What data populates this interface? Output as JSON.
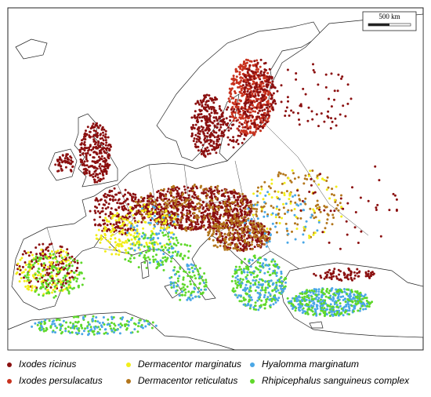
{
  "scale_bar": {
    "label": "500 km"
  },
  "legend": [
    {
      "name": "Ixodes ricinus",
      "color": "#8b1010"
    },
    {
      "name": "Ixodes persulacatus",
      "color": "#c8321e"
    },
    {
      "name": "Dermacentor marginatus",
      "color": "#f2ee1a"
    },
    {
      "name": "Dermacentor reticulatus",
      "color": "#b3761c"
    },
    {
      "name": "Hyalomma marginatum",
      "color": "#4aa7e6"
    },
    {
      "name": "Rhipicephalus sanguineus complex",
      "color": "#5fd82a"
    }
  ]
}
